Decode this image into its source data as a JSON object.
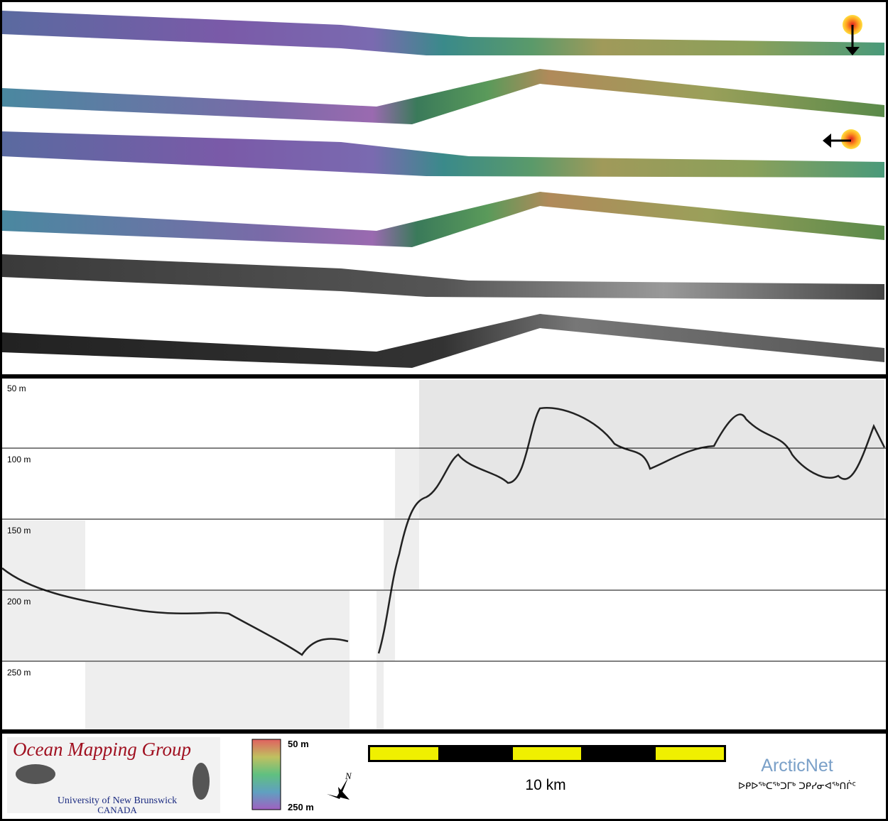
{
  "profile": {
    "depth_labels": [
      "50 m",
      "100 m",
      "150 m",
      "200 m",
      "250 m"
    ]
  },
  "footer": {
    "logo": {
      "title": "Ocean Mapping Group",
      "university": "University of New Brunswick",
      "country": "CANADA"
    },
    "colorbar": {
      "top_label": "50 m",
      "bottom_label": "250 m"
    },
    "compass": "N",
    "scale_bar": "10 km",
    "partner": {
      "name": "ArcticNet",
      "syllabics": "ᐅᑭᐅᖅᑕᖅᑐᒥᒃ ᑐᑭᓯᓂᐊᖅᑎᒌᑦ"
    }
  }
}
